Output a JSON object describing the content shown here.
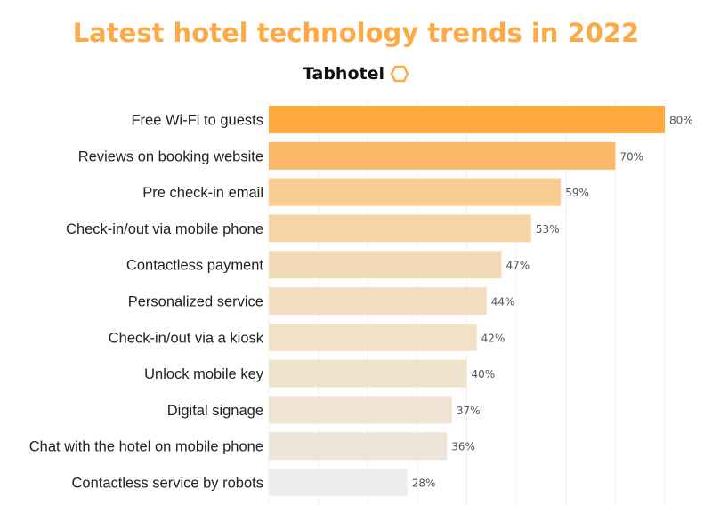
{
  "chart_data": {
    "type": "bar",
    "orientation": "horizontal",
    "title": "Latest hotel technology trends in 2022",
    "subtitle": "Tabhotel",
    "categories": [
      "Free Wi-Fi to guests",
      "Reviews on booking website",
      "Pre check-in email",
      "Check-in/out via mobile phone",
      "Contactless payment",
      "Personalized service",
      "Check-in/out via a kiosk",
      "Unlock mobile key",
      "Digital signage",
      "Chat with the hotel on mobile phone",
      "Contactless service by robots"
    ],
    "values": [
      80,
      70,
      59,
      53,
      47,
      44,
      42,
      40,
      37,
      36,
      28
    ],
    "value_labels": [
      "80%",
      "70%",
      "59%",
      "53%",
      "47%",
      "44%",
      "42%",
      "40%",
      "37%",
      "36%",
      "28%"
    ],
    "colors": [
      "#FFA93E",
      "#FBB867",
      "#F8CC93",
      "#F6D4A7",
      "#F3DAB7",
      "#F2DEC0",
      "#F0E1C7",
      "#F0E3CC",
      "#EFE4D2",
      "#EFE5D6",
      "#EEEEEE"
    ],
    "xlim": [
      0,
      100
    ],
    "grid": true,
    "title_color": "#FDAA46",
    "logo_icon": "hexagon-outline-icon"
  }
}
